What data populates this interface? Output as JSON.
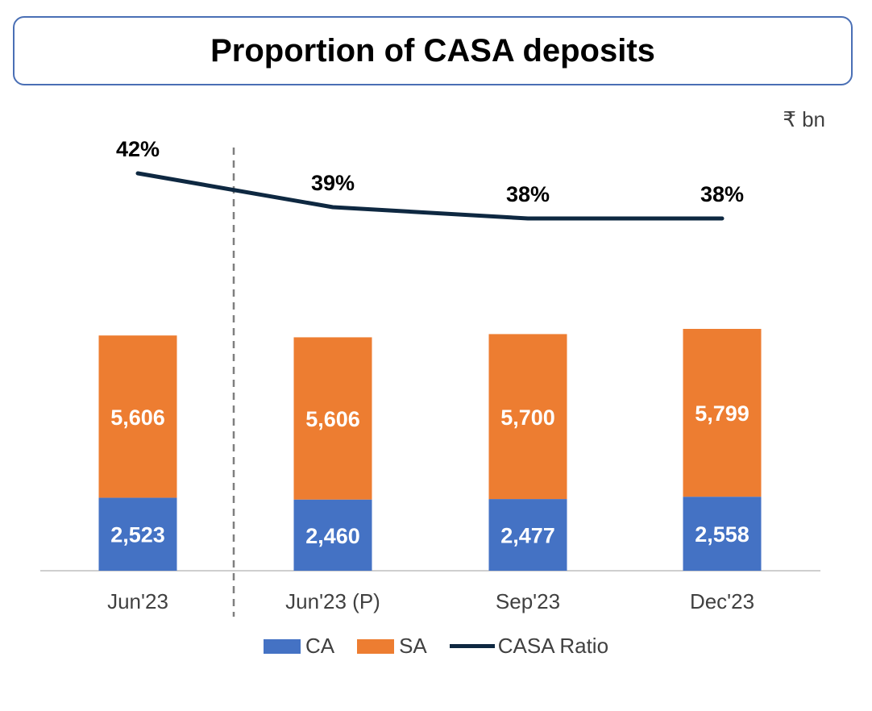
{
  "title": "Proportion of CASA deposits",
  "unit_label": "₹ bn",
  "colors": {
    "ca": "#4472c4",
    "sa": "#ed7d31",
    "ratio": "#0e2841",
    "axis": "#bfbfbf",
    "divider": "#7f7f7f"
  },
  "chart_data": {
    "type": "bar",
    "stacked": true,
    "categories": [
      "Jun'23",
      "Jun'23 (P)",
      "Sep'23",
      "Dec'23"
    ],
    "series": [
      {
        "name": "CA",
        "type": "bar",
        "values": [
          2523,
          2460,
          2477,
          2558
        ],
        "labels": [
          "2,523",
          "2,460",
          "2,477",
          "2,558"
        ]
      },
      {
        "name": "SA",
        "type": "bar",
        "values": [
          5606,
          5606,
          5700,
          5799
        ],
        "labels": [
          "5,606",
          "5,606",
          "5,700",
          "5,799"
        ]
      },
      {
        "name": "CASA Ratio",
        "type": "line",
        "values": [
          42,
          39,
          38,
          38
        ],
        "labels": [
          "42%",
          "39%",
          "38%",
          "38%"
        ]
      }
    ],
    "ylabel": "₹ bn",
    "legend": [
      "CA",
      "SA",
      "CASA Ratio"
    ],
    "legend_position": "bottom"
  }
}
